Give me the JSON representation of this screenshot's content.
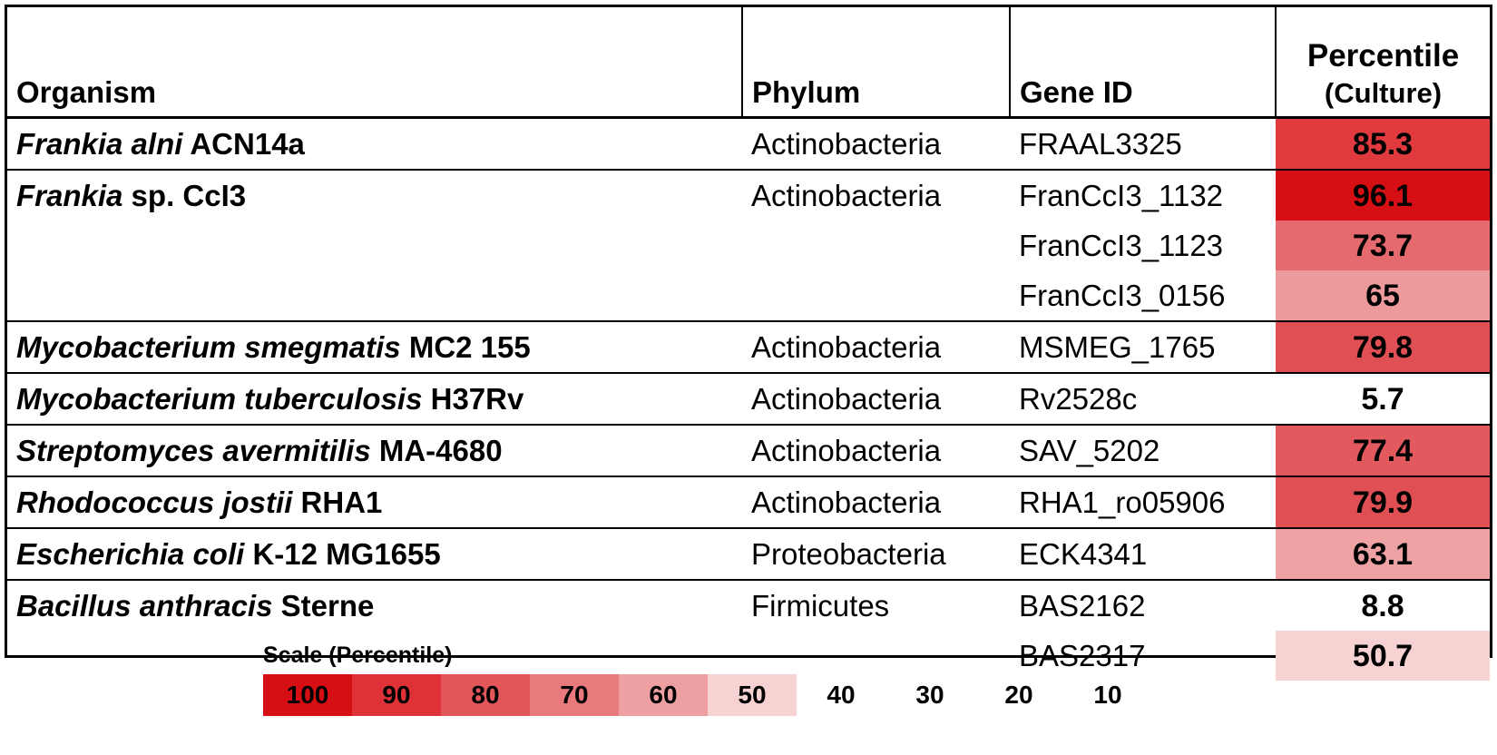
{
  "table": {
    "headers": {
      "organism": "Organism",
      "phylum": "Phylum",
      "gene_id": "Gene ID",
      "percentile_line1": "Percentile",
      "percentile_line2": "(Culture)"
    },
    "rows": [
      {
        "group_start": true,
        "genus": "Frankia alni",
        "strain": " ACN14a",
        "phylum": "Actinobacteria",
        "gene_id": "FRAAL3325",
        "percentile": "85.3",
        "color": "#e03a3f"
      },
      {
        "group_start": true,
        "genus": "Frankia",
        "strain": " sp. CcI3",
        "phylum": "Actinobacteria",
        "gene_id": "FranCcI3_1132",
        "percentile": "96.1",
        "color": "#d60f14"
      },
      {
        "group_start": false,
        "genus": "",
        "strain": "",
        "phylum": "",
        "gene_id": "FranCcI3_1123",
        "percentile": "73.7",
        "color": "#e56a6e"
      },
      {
        "group_start": false,
        "genus": "",
        "strain": "",
        "phylum": "",
        "gene_id": "FranCcI3_0156",
        "percentile": "65",
        "color": "#ec9a9c"
      },
      {
        "group_start": true,
        "genus": "Mycobacterium smegmatis",
        "strain": " MC2 155",
        "phylum": "Actinobacteria",
        "gene_id": "MSMEG_1765",
        "percentile": "79.8",
        "color": "#e04f53"
      },
      {
        "group_start": true,
        "genus": "Mycobacterium tuberculosis",
        "strain": " H37Rv",
        "phylum": "Actinobacteria",
        "gene_id": "Rv2528c",
        "percentile": "5.7",
        "color": "#ffffff"
      },
      {
        "group_start": true,
        "genus": "Streptomyces avermitilis",
        "strain": " MA-4680",
        "phylum": "Actinobacteria",
        "gene_id": "SAV_5202",
        "percentile": "77.4",
        "color": "#e25a5e"
      },
      {
        "group_start": true,
        "genus": "Rhodococcus jostii",
        "strain": " RHA1",
        "phylum": "Actinobacteria",
        "gene_id": "RHA1_ro05906",
        "percentile": "79.9",
        "color": "#e04f53"
      },
      {
        "group_start": true,
        "genus": "Escherichia coli",
        "strain": " K-12 MG1655",
        "phylum": "Proteobacteria",
        "gene_id": "ECK4341",
        "percentile": "63.1",
        "color": "#eea2a4"
      },
      {
        "group_start": true,
        "genus": "Bacillus anthracis",
        "strain": " Sterne",
        "phylum": "Firmicutes",
        "gene_id": "BAS2162",
        "percentile": "8.8",
        "color": "#ffffff"
      },
      {
        "group_start": false,
        "genus": "",
        "strain": "",
        "phylum": "",
        "gene_id": "BAS2317",
        "percentile": "50.7",
        "color": "#f6d2d3"
      }
    ]
  },
  "legend": {
    "title": "Scale (Percentile)",
    "items": [
      {
        "label": "100",
        "color": "#d60f14"
      },
      {
        "label": "90",
        "color": "#de3238"
      },
      {
        "label": "80",
        "color": "#e2565a"
      },
      {
        "label": "70",
        "color": "#e87a7d"
      },
      {
        "label": "60",
        "color": "#ee9fa1"
      },
      {
        "label": "50",
        "color": "#f6d2d3"
      },
      {
        "label": "40",
        "color": "#ffffff"
      },
      {
        "label": "30",
        "color": "#ffffff"
      },
      {
        "label": "20",
        "color": "#ffffff"
      },
      {
        "label": "10",
        "color": "#ffffff"
      }
    ]
  }
}
